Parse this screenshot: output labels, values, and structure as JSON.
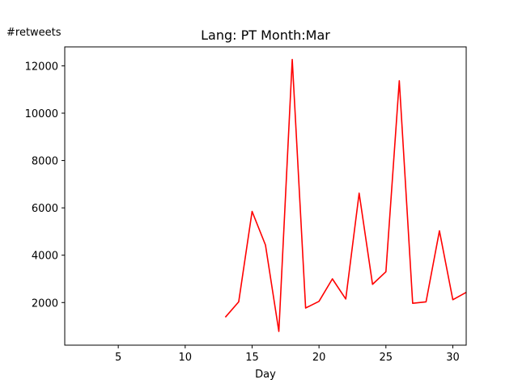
{
  "chart_data": {
    "type": "line",
    "title": "Lang: PT Month:Mar",
    "xlabel": "Day",
    "ylabel": "#retweets",
    "xlim": [
      1,
      31
    ],
    "ylim": [
      200,
      12800
    ],
    "xticks": [
      5,
      10,
      15,
      20,
      25,
      30
    ],
    "yticks": [
      2000,
      4000,
      6000,
      8000,
      10000,
      12000
    ],
    "grid": false,
    "series": [
      {
        "color": "#ff0000",
        "x": [
          13,
          14,
          15,
          16,
          17,
          18,
          19,
          20,
          21,
          22,
          23,
          24,
          25,
          26,
          27,
          28,
          29,
          30,
          31
        ],
        "y": [
          1380,
          2030,
          5850,
          4430,
          780,
          12270,
          1770,
          2050,
          3000,
          2150,
          6620,
          2770,
          3300,
          11370,
          1970,
          2030,
          5030,
          2120,
          2430
        ]
      }
    ]
  }
}
